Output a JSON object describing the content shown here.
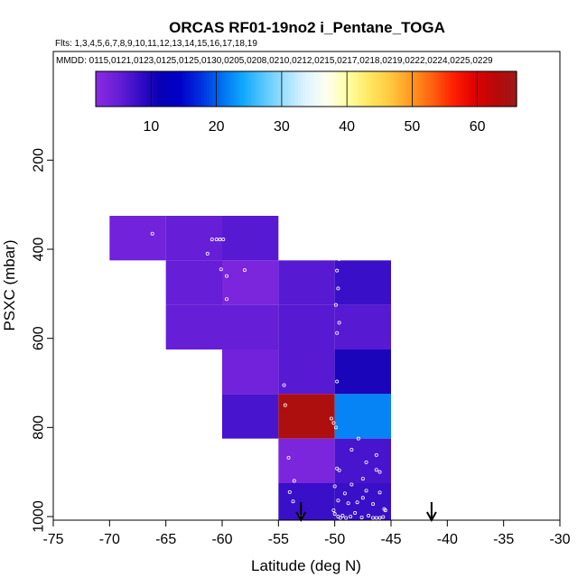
{
  "chart_data": {
    "type": "heatmap",
    "title": "ORCAS RF01-19no2 i_Pentane_TOGA",
    "flights_note": "Flts: 1,3,4,5,6,7,8,9,10,11,12,13,14,15,16,17,18,19",
    "mmdd_note": "MMDD: 0115,0121,0123,0125,0125,0130,0205,0208,0210,0212,0215,0217,0218,0219,0222,0224,0225,0229",
    "xlabel": "Latitude (deg N)",
    "ylabel": "PSXC (mbar)",
    "xlim": [
      -75,
      -30
    ],
    "ylim": [
      1000,
      100
    ],
    "xticks": [
      -75,
      -70,
      -65,
      -60,
      -55,
      -50,
      -45,
      -40,
      -35,
      -30
    ],
    "yticks": [
      200,
      400,
      600,
      800,
      1000
    ],
    "colorbar": {
      "range": [
        1.5,
        66
      ],
      "ticks": [
        10,
        20,
        30,
        40,
        50,
        60
      ],
      "colors": [
        "#8a2be2",
        "#6a1fd8",
        "#3a0fc8",
        "#0a00b4",
        "#0000c8",
        "#0030e0",
        "#0070f0",
        "#10a8ff",
        "#58c8ff",
        "#a0e0ff",
        "#e0f4ff",
        "#fffff0",
        "#ffffa0",
        "#ffe860",
        "#ffc840",
        "#ff9820",
        "#ff6010",
        "#ff2000",
        "#e00000",
        "#b80808",
        "#9c1a1a"
      ]
    },
    "cells": [
      {
        "lat0": -70,
        "lat1": -65,
        "p0": 325,
        "p1": 425,
        "value": 4
      },
      {
        "lat0": -65,
        "lat1": -60,
        "p0": 325,
        "p1": 425,
        "value": 5
      },
      {
        "lat0": -60,
        "lat1": -55,
        "p0": 325,
        "p1": 425,
        "value": 6
      },
      {
        "lat0": -65,
        "lat1": -60,
        "p0": 425,
        "p1": 525,
        "value": 5
      },
      {
        "lat0": -60,
        "lat1": -55,
        "p0": 425,
        "p1": 525,
        "value": 3
      },
      {
        "lat0": -55,
        "lat1": -50,
        "p0": 425,
        "p1": 525,
        "value": 6
      },
      {
        "lat0": -50,
        "lat1": -45,
        "p0": 425,
        "p1": 525,
        "value": 8
      },
      {
        "lat0": -65,
        "lat1": -60,
        "p0": 525,
        "p1": 625,
        "value": 5
      },
      {
        "lat0": -60,
        "lat1": -55,
        "p0": 525,
        "p1": 625,
        "value": 5
      },
      {
        "lat0": -55,
        "lat1": -50,
        "p0": 525,
        "p1": 625,
        "value": 6
      },
      {
        "lat0": -50,
        "lat1": -45,
        "p0": 525,
        "p1": 625,
        "value": 6
      },
      {
        "lat0": -60,
        "lat1": -55,
        "p0": 625,
        "p1": 725,
        "value": 4
      },
      {
        "lat0": -55,
        "lat1": -50,
        "p0": 625,
        "p1": 725,
        "value": 6
      },
      {
        "lat0": -50,
        "lat1": -45,
        "p0": 625,
        "p1": 725,
        "value": 10
      },
      {
        "lat0": -60,
        "lat1": -55,
        "p0": 725,
        "p1": 825,
        "value": 7
      },
      {
        "lat0": -55,
        "lat1": -50,
        "p0": 725,
        "p1": 825,
        "value": 64
      },
      {
        "lat0": -50,
        "lat1": -45,
        "p0": 725,
        "p1": 825,
        "value": 22
      },
      {
        "lat0": -55,
        "lat1": -50,
        "p0": 825,
        "p1": 925,
        "value": 3
      },
      {
        "lat0": -50,
        "lat1": -45,
        "p0": 825,
        "p1": 925,
        "value": 7
      },
      {
        "lat0": -55,
        "lat1": -50,
        "p0": 925,
        "p1": 1025,
        "value": 8
      },
      {
        "lat0": -50,
        "lat1": -45,
        "p0": 925,
        "p1": 1025,
        "value": 8
      }
    ],
    "points": [
      {
        "lat": -66.2,
        "p": 365
      },
      {
        "lat": -60.9,
        "p": 378
      },
      {
        "lat": -60.5,
        "p": 378
      },
      {
        "lat": -60.2,
        "p": 378
      },
      {
        "lat": -59.9,
        "p": 378
      },
      {
        "lat": -61.3,
        "p": 410
      },
      {
        "lat": -60.1,
        "p": 445
      },
      {
        "lat": -59.6,
        "p": 460
      },
      {
        "lat": -58.0,
        "p": 447
      },
      {
        "lat": -59.6,
        "p": 512
      },
      {
        "lat": -49.6,
        "p": 422
      },
      {
        "lat": -49.8,
        "p": 448
      },
      {
        "lat": -49.7,
        "p": 488
      },
      {
        "lat": -49.9,
        "p": 525
      },
      {
        "lat": -49.6,
        "p": 565
      },
      {
        "lat": -49.8,
        "p": 588
      },
      {
        "lat": -49.8,
        "p": 697
      },
      {
        "lat": -54.5,
        "p": 705
      },
      {
        "lat": -54.4,
        "p": 750
      },
      {
        "lat": -50.3,
        "p": 780
      },
      {
        "lat": -50.1,
        "p": 790
      },
      {
        "lat": -49.9,
        "p": 800
      },
      {
        "lat": -47.9,
        "p": 825
      },
      {
        "lat": -48.5,
        "p": 850
      },
      {
        "lat": -46.3,
        "p": 862
      },
      {
        "lat": -47.2,
        "p": 878
      },
      {
        "lat": -54.1,
        "p": 868
      },
      {
        "lat": -49.8,
        "p": 892
      },
      {
        "lat": -49.6,
        "p": 896
      },
      {
        "lat": -46.3,
        "p": 895
      },
      {
        "lat": -46.0,
        "p": 900
      },
      {
        "lat": -53.6,
        "p": 920
      },
      {
        "lat": -47.5,
        "p": 915
      },
      {
        "lat": -48.5,
        "p": 928
      },
      {
        "lat": -50.0,
        "p": 932
      },
      {
        "lat": -54.0,
        "p": 945
      },
      {
        "lat": -49.1,
        "p": 948
      },
      {
        "lat": -47.2,
        "p": 942
      },
      {
        "lat": -46.0,
        "p": 946
      },
      {
        "lat": -47.5,
        "p": 958
      },
      {
        "lat": -53.7,
        "p": 966
      },
      {
        "lat": -49.7,
        "p": 964
      },
      {
        "lat": -48.8,
        "p": 970
      },
      {
        "lat": -48.0,
        "p": 968
      },
      {
        "lat": -46.6,
        "p": 972
      },
      {
        "lat": -45.6,
        "p": 983
      },
      {
        "lat": -45.5,
        "p": 986
      },
      {
        "lat": -50.1,
        "p": 986
      },
      {
        "lat": -50.0,
        "p": 994
      },
      {
        "lat": -49.7,
        "p": 1000
      },
      {
        "lat": -49.5,
        "p": 1003
      },
      {
        "lat": -49.3,
        "p": 998
      },
      {
        "lat": -49.0,
        "p": 1003
      },
      {
        "lat": -48.6,
        "p": 1000
      },
      {
        "lat": -48.2,
        "p": 992
      },
      {
        "lat": -47.6,
        "p": 1002
      },
      {
        "lat": -47.0,
        "p": 998
      },
      {
        "lat": -46.6,
        "p": 1003
      },
      {
        "lat": -46.3,
        "p": 1003
      },
      {
        "lat": -46.0,
        "p": 1003
      },
      {
        "lat": -45.7,
        "p": 1001
      },
      {
        "lat": -53.0,
        "p": 1000
      }
    ],
    "arrows": [
      {
        "lat": -53.0
      },
      {
        "lat": -41.4
      }
    ]
  }
}
